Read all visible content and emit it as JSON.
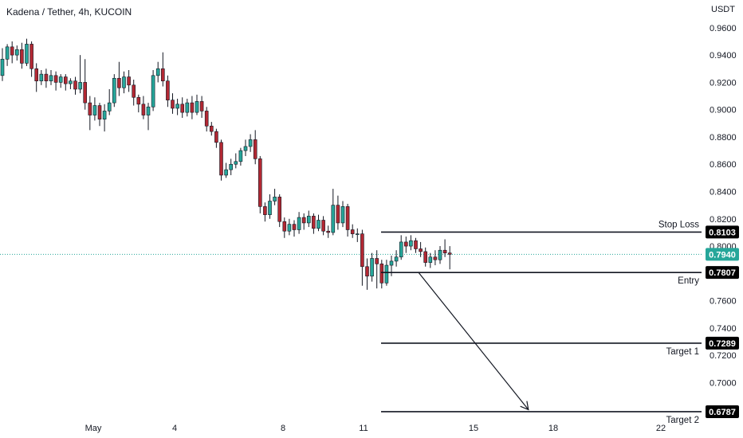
{
  "header": {
    "title": "Kadena / Tether, 4h, KUCOIN",
    "unit": "USDT"
  },
  "colors": {
    "up": "#26a69a",
    "down": "#b22833",
    "current_price": "#26a69a",
    "level_tag": "#000000",
    "text": "#131722"
  },
  "chart_data": {
    "type": "candlestick",
    "ylim": [
      0.674,
      0.964
    ],
    "y_ticks": [
      "0.9600",
      "0.9400",
      "0.9200",
      "0.9000",
      "0.8800",
      "0.8600",
      "0.8400",
      "0.8200",
      "0.8000",
      "0.7600",
      "0.7400",
      "0.7200",
      "0.7000"
    ],
    "x_ticks": [
      "May",
      "4",
      "8",
      "11",
      "15",
      "18",
      "22"
    ],
    "current_price": {
      "label": "0.7940",
      "value": 0.794
    },
    "levels": [
      {
        "name": "Stop Loss",
        "label": "0.8103",
        "value": 0.8103
      },
      {
        "name": "Entry",
        "label": "0.7807",
        "value": 0.7807
      },
      {
        "name": "Target 1",
        "label": "0.7289",
        "value": 0.7289
      },
      {
        "name": "Target 2",
        "label": "0.6787",
        "value": 0.6787
      }
    ],
    "projection_arrow": {
      "from": {
        "bar": 86,
        "price": 0.781
      },
      "to": {
        "bar": 108,
        "price": 0.679
      }
    },
    "candles": [
      [
        0.925,
        0.937,
        0.945,
        0.921
      ],
      [
        0.937,
        0.946,
        0.948,
        0.932
      ],
      [
        0.946,
        0.94,
        0.95,
        0.934
      ],
      [
        0.94,
        0.944,
        0.947,
        0.936
      ],
      [
        0.944,
        0.934,
        0.949,
        0.93
      ],
      [
        0.934,
        0.948,
        0.952,
        0.932
      ],
      [
        0.948,
        0.93,
        0.95,
        0.924
      ],
      [
        0.93,
        0.921,
        0.934,
        0.913
      ],
      [
        0.921,
        0.926,
        0.929,
        0.918
      ],
      [
        0.926,
        0.921,
        0.93,
        0.916
      ],
      [
        0.921,
        0.925,
        0.929,
        0.918
      ],
      [
        0.925,
        0.92,
        0.928,
        0.914
      ],
      [
        0.92,
        0.924,
        0.926,
        0.916
      ],
      [
        0.924,
        0.919,
        0.926,
        0.914
      ],
      [
        0.919,
        0.921,
        0.923,
        0.915
      ],
      [
        0.921,
        0.915,
        0.924,
        0.911
      ],
      [
        0.915,
        0.92,
        0.94,
        0.912
      ],
      [
        0.92,
        0.905,
        0.937,
        0.9
      ],
      [
        0.905,
        0.896,
        0.91,
        0.885
      ],
      [
        0.896,
        0.903,
        0.909,
        0.892
      ],
      [
        0.903,
        0.893,
        0.905,
        0.888
      ],
      [
        0.893,
        0.899,
        0.904,
        0.884
      ],
      [
        0.899,
        0.905,
        0.915,
        0.896
      ],
      [
        0.905,
        0.923,
        0.926,
        0.902
      ],
      [
        0.923,
        0.916,
        0.935,
        0.91
      ],
      [
        0.916,
        0.924,
        0.928,
        0.912
      ],
      [
        0.924,
        0.918,
        0.929,
        0.913
      ],
      [
        0.918,
        0.909,
        0.922,
        0.903
      ],
      [
        0.909,
        0.904,
        0.911,
        0.898
      ],
      [
        0.904,
        0.896,
        0.91,
        0.893
      ],
      [
        0.896,
        0.902,
        0.905,
        0.885
      ],
      [
        0.902,
        0.925,
        0.929,
        0.899
      ],
      [
        0.925,
        0.93,
        0.935,
        0.92
      ],
      [
        0.93,
        0.921,
        0.942,
        0.917
      ],
      [
        0.921,
        0.907,
        0.925,
        0.902
      ],
      [
        0.907,
        0.901,
        0.912,
        0.897
      ],
      [
        0.901,
        0.904,
        0.908,
        0.896
      ],
      [
        0.904,
        0.898,
        0.909,
        0.894
      ],
      [
        0.898,
        0.905,
        0.908,
        0.895
      ],
      [
        0.905,
        0.898,
        0.91,
        0.893
      ],
      [
        0.898,
        0.906,
        0.911,
        0.896
      ],
      [
        0.906,
        0.899,
        0.91,
        0.894
      ],
      [
        0.899,
        0.888,
        0.902,
        0.884
      ],
      [
        0.888,
        0.884,
        0.891,
        0.881
      ],
      [
        0.884,
        0.876,
        0.886,
        0.872
      ],
      [
        0.876,
        0.852,
        0.878,
        0.848
      ],
      [
        0.852,
        0.856,
        0.861,
        0.85
      ],
      [
        0.856,
        0.86,
        0.864,
        0.852
      ],
      [
        0.86,
        0.862,
        0.868,
        0.857
      ],
      [
        0.862,
        0.87,
        0.872,
        0.859
      ],
      [
        0.87,
        0.873,
        0.878,
        0.866
      ],
      [
        0.873,
        0.878,
        0.882,
        0.869
      ],
      [
        0.878,
        0.864,
        0.885,
        0.86
      ],
      [
        0.864,
        0.829,
        0.866,
        0.824
      ],
      [
        0.829,
        0.823,
        0.832,
        0.818
      ],
      [
        0.823,
        0.833,
        0.838,
        0.82
      ],
      [
        0.833,
        0.836,
        0.842,
        0.83
      ],
      [
        0.836,
        0.818,
        0.838,
        0.814
      ],
      [
        0.818,
        0.811,
        0.821,
        0.806
      ],
      [
        0.811,
        0.816,
        0.82,
        0.808
      ],
      [
        0.816,
        0.812,
        0.819,
        0.807
      ],
      [
        0.812,
        0.821,
        0.825,
        0.809
      ],
      [
        0.821,
        0.817,
        0.824,
        0.812
      ],
      [
        0.817,
        0.822,
        0.826,
        0.814
      ],
      [
        0.822,
        0.813,
        0.824,
        0.809
      ],
      [
        0.813,
        0.819,
        0.823,
        0.811
      ],
      [
        0.819,
        0.811,
        0.822,
        0.808
      ],
      [
        0.811,
        0.81,
        0.815,
        0.806
      ],
      [
        0.81,
        0.83,
        0.842,
        0.808
      ],
      [
        0.83,
        0.817,
        0.837,
        0.812
      ],
      [
        0.817,
        0.829,
        0.833,
        0.814
      ],
      [
        0.829,
        0.812,
        0.831,
        0.807
      ],
      [
        0.812,
        0.809,
        0.816,
        0.806
      ],
      [
        0.809,
        0.809,
        0.813,
        0.803
      ],
      [
        0.809,
        0.785,
        0.812,
        0.771
      ],
      [
        0.785,
        0.778,
        0.791,
        0.768
      ],
      [
        0.778,
        0.791,
        0.795,
        0.774
      ],
      [
        0.791,
        0.787,
        0.797,
        0.769
      ],
      [
        0.787,
        0.773,
        0.79,
        0.769
      ],
      [
        0.773,
        0.786,
        0.79,
        0.771
      ],
      [
        0.786,
        0.789,
        0.793,
        0.778
      ],
      [
        0.789,
        0.792,
        0.797,
        0.785
      ],
      [
        0.792,
        0.803,
        0.808,
        0.79
      ],
      [
        0.803,
        0.8,
        0.807,
        0.795
      ],
      [
        0.8,
        0.804,
        0.808,
        0.797
      ],
      [
        0.804,
        0.798,
        0.806,
        0.795
      ],
      [
        0.798,
        0.796,
        0.803,
        0.792
      ],
      [
        0.796,
        0.788,
        0.799,
        0.785
      ],
      [
        0.788,
        0.792,
        0.795,
        0.784
      ],
      [
        0.792,
        0.79,
        0.797,
        0.786
      ],
      [
        0.79,
        0.797,
        0.8,
        0.787
      ],
      [
        0.797,
        0.795,
        0.805,
        0.792
      ],
      [
        0.795,
        0.794,
        0.8,
        0.783
      ]
    ]
  }
}
